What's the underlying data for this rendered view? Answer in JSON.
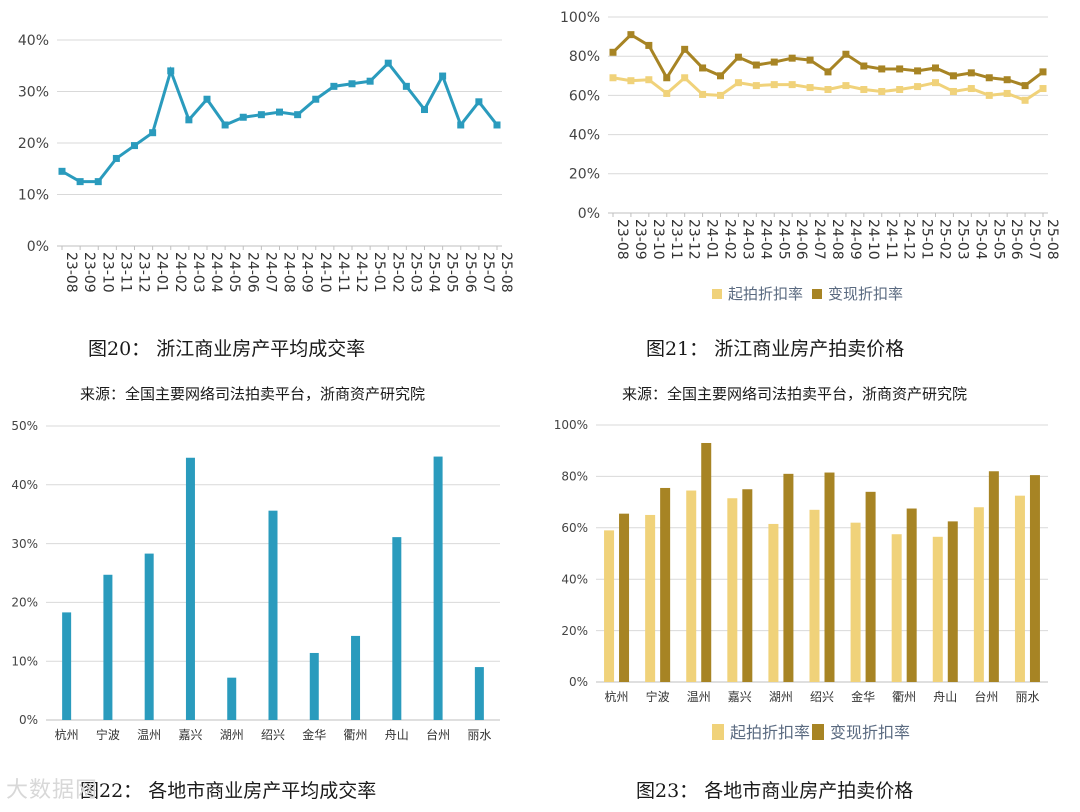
{
  "captions": {
    "fig20": "图20：  浙江商业房产平均成交率",
    "fig21": "图21：  浙江商业房产拍卖价格",
    "fig22": "图22：  各地市商业房产平均成交率",
    "fig23": "图23：  各地市商业房产拍卖价格"
  },
  "sources": {
    "top_left": "来源：全国主要网络司法拍卖平台，浙商资产研究院",
    "top_right": "来源：全国主要网络司法拍卖平台，浙商资产研究院"
  },
  "watermark": "大数据网",
  "colors": {
    "teal": "#2a9bbd",
    "light_gold": "#f0d27a",
    "dark_gold": "#a78424",
    "grid": "#d9d9d9",
    "axis": "#bfbfbf"
  },
  "chart_data": [
    {
      "id": "fig20",
      "type": "line",
      "x": [
        "23-08",
        "23-09",
        "23-10",
        "23-11",
        "23-12",
        "24-01",
        "24-02",
        "24-03",
        "24-04",
        "24-05",
        "24-06",
        "24-07",
        "24-08",
        "24-09",
        "24-10",
        "24-11",
        "24-12",
        "25-01",
        "25-02",
        "25-03",
        "25-04",
        "25-05",
        "25-06",
        "25-07",
        "25-08"
      ],
      "series": [
        {
          "values": [
            14.5,
            12.5,
            12.5,
            17,
            19.5,
            22,
            34,
            24.5,
            28.5,
            23.5,
            25,
            25.5,
            26,
            25.5,
            28.5,
            31,
            31.5,
            32,
            35.5,
            31,
            26.5,
            33,
            23.5,
            28,
            23.5
          ],
          "color": "#2a9bbd"
        }
      ],
      "y_ticks": [
        "0%",
        "10%",
        "20%",
        "30%",
        "40%"
      ],
      "ylim": [
        0,
        40
      ],
      "grid": true
    },
    {
      "id": "fig21",
      "type": "line",
      "x": [
        "23-08",
        "23-09",
        "23-10",
        "23-11",
        "23-12",
        "24-01",
        "24-02",
        "24-03",
        "24-04",
        "24-05",
        "24-06",
        "24-07",
        "24-08",
        "24-09",
        "24-10",
        "24-11",
        "24-12",
        "25-01",
        "25-02",
        "25-03",
        "25-04",
        "25-05",
        "25-06",
        "25-07",
        "25-08"
      ],
      "series": [
        {
          "name": "起拍折扣率",
          "color": "#f0d27a",
          "values": [
            69,
            67.5,
            68,
            61,
            69,
            60.5,
            60,
            66.5,
            65,
            65.5,
            65.5,
            64,
            63,
            65,
            63,
            62,
            63,
            64.5,
            66.5,
            62,
            63.5,
            60,
            61,
            57.5,
            63.5
          ]
        },
        {
          "name": "变现折扣率",
          "color": "#a78424",
          "values": [
            82,
            91,
            85.5,
            69,
            83.5,
            74,
            70,
            79.5,
            75.5,
            77,
            79,
            78,
            72,
            81,
            75,
            73.5,
            73.5,
            72.5,
            74,
            70,
            71.5,
            69,
            68,
            65,
            72
          ]
        }
      ],
      "y_ticks": [
        "0%",
        "20%",
        "40%",
        "60%",
        "80%",
        "100%"
      ],
      "ylim": [
        0,
        100
      ],
      "grid": true,
      "legend": "bottom"
    },
    {
      "id": "fig22",
      "type": "bar",
      "categories": [
        "杭州",
        "宁波",
        "温州",
        "嘉兴",
        "湖州",
        "绍兴",
        "金华",
        "衢州",
        "舟山",
        "台州",
        "丽水"
      ],
      "series": [
        {
          "values": [
            18.3,
            24.7,
            28.3,
            44.6,
            7.2,
            35.6,
            11.4,
            14.3,
            31.1,
            44.8,
            9.0
          ],
          "color": "#2a9bbd"
        }
      ],
      "y_ticks": [
        "0%",
        "10%",
        "20%",
        "30%",
        "40%",
        "50%"
      ],
      "ylim": [
        0,
        50
      ],
      "grid": true
    },
    {
      "id": "fig23",
      "type": "bar",
      "categories": [
        "杭州",
        "宁波",
        "温州",
        "嘉兴",
        "湖州",
        "绍兴",
        "金华",
        "衢州",
        "舟山",
        "台州",
        "丽水"
      ],
      "series": [
        {
          "name": "起拍折扣率",
          "color": "#f0d27a",
          "values": [
            59,
            65,
            74.5,
            71.5,
            61.5,
            67,
            62,
            57.5,
            56.5,
            68,
            72.5
          ]
        },
        {
          "name": "变现折扣率",
          "color": "#a78424",
          "values": [
            65.5,
            75.5,
            93,
            75,
            81,
            81.5,
            74,
            67.5,
            62.5,
            82,
            80.5
          ]
        }
      ],
      "y_ticks": [
        "0%",
        "20%",
        "40%",
        "60%",
        "80%",
        "100%"
      ],
      "ylim": [
        0,
        100
      ],
      "grid": true,
      "legend": "bottom"
    }
  ]
}
